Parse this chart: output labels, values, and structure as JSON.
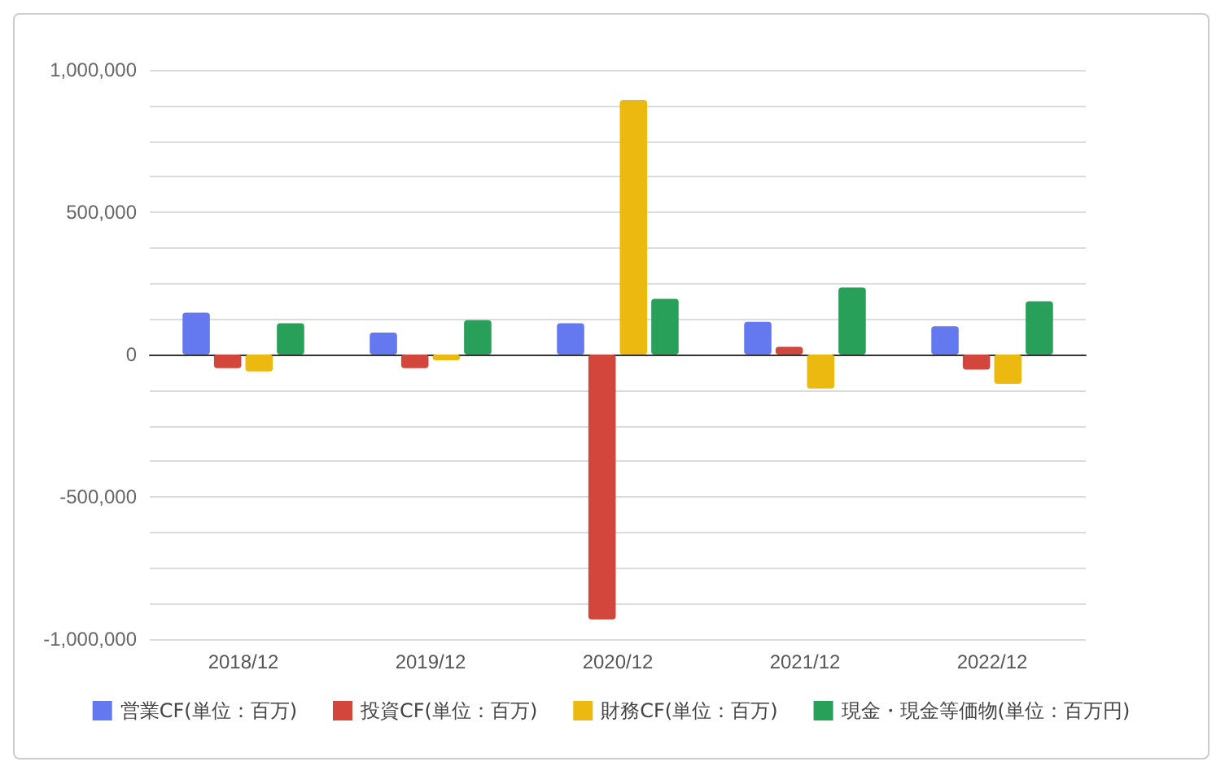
{
  "chart_data": {
    "type": "bar",
    "categories": [
      "2018/12",
      "2019/12",
      "2020/12",
      "2021/12",
      "2022/12"
    ],
    "series": [
      {
        "name": "営業CF(単位：百万)",
        "color": "#6479f0",
        "values": [
          147000,
          77000,
          110000,
          115000,
          99000
        ]
      },
      {
        "name": "投資CF(単位：百万)",
        "color": "#d2463c",
        "values": [
          -48000,
          -48000,
          -931000,
          27000,
          -53000
        ]
      },
      {
        "name": "財務CF(単位：百万)",
        "color": "#ebb90f",
        "values": [
          -59000,
          -20000,
          894000,
          -119000,
          -103000
        ]
      },
      {
        "name": "現金・現金等価物(単位：百万円)",
        "color": "#28a05a",
        "values": [
          110000,
          121000,
          196000,
          236000,
          187000
        ]
      }
    ],
    "ylim": [
      -1000000,
      1000000
    ],
    "yticks": [
      {
        "value": -1000000,
        "label": "-1,000,000"
      },
      {
        "value": -875000,
        "label": null
      },
      {
        "value": -750000,
        "label": null
      },
      {
        "value": -625000,
        "label": null
      },
      {
        "value": -500000,
        "label": "-500,000"
      },
      {
        "value": -375000,
        "label": null
      },
      {
        "value": -250000,
        "label": null
      },
      {
        "value": -125000,
        "label": null
      },
      0,
      {
        "value": 125000,
        "label": null
      },
      {
        "value": 250000,
        "label": null
      },
      {
        "value": 375000,
        "label": null
      },
      {
        "value": 500000,
        "label": "500,000"
      },
      {
        "value": 625000,
        "label": null
      },
      {
        "value": 750000,
        "label": null
      },
      {
        "value": 875000,
        "label": null
      },
      {
        "value": 1000000,
        "label": "1,000,000"
      }
    ],
    "grid": true,
    "legend": "bottom"
  }
}
